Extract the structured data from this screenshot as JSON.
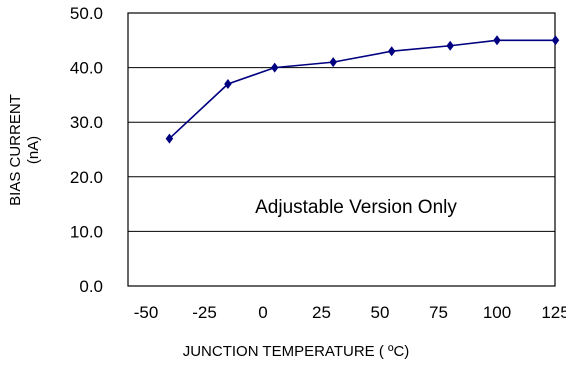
{
  "chart_data": {
    "type": "line",
    "title": "",
    "xlabel": "JUNCTION TEMPERATURE ( ºC)",
    "ylabel_lines": [
      "BIAS CURRENT",
      "(nA)"
    ],
    "annotation": "Adjustable Version Only",
    "x": [
      -40,
      -15,
      5,
      30,
      55,
      80,
      100,
      125
    ],
    "series": [
      {
        "values": [
          27.0,
          37.0,
          40.0,
          41.0,
          43.0,
          44.0,
          45.0,
          45.0
        ]
      }
    ],
    "x_tick_labels": [
      "-50",
      "-25",
      "0",
      "25",
      "50",
      "75",
      "100",
      "125"
    ],
    "x_tick_values": [
      -50,
      -25,
      0,
      25,
      50,
      75,
      100,
      125
    ],
    "y_tick_labels": [
      "0.0",
      "10.0",
      "20.0",
      "30.0",
      "40.0",
      "50.0"
    ],
    "y_tick_values": [
      0,
      10,
      20,
      30,
      40,
      50
    ],
    "ylim": [
      0,
      50
    ],
    "grid": "horizontal",
    "legend": "none",
    "line_color": "#000080",
    "marker": "diamond"
  }
}
